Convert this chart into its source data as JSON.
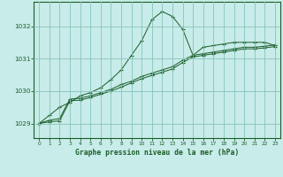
{
  "title": "Graphe pression niveau de la mer (hPa)",
  "bg_color": "#c8ece9",
  "grid_color": "#88c4bc",
  "line_color": "#1a5c28",
  "x_ticks": [
    0,
    1,
    2,
    3,
    4,
    5,
    6,
    7,
    8,
    9,
    10,
    11,
    12,
    13,
    14,
    15,
    16,
    17,
    18,
    19,
    20,
    21,
    22,
    23
  ],
  "y_ticks": [
    1029,
    1030,
    1031,
    1032
  ],
  "ylim": [
    1028.55,
    1032.75
  ],
  "xlim": [
    -0.5,
    23.5
  ],
  "series1": [
    1029.0,
    1029.25,
    1029.5,
    1029.65,
    1029.85,
    1029.95,
    1030.1,
    1030.35,
    1030.65,
    1031.1,
    1031.55,
    1032.2,
    1032.45,
    1032.3,
    1031.9,
    1031.1,
    1031.35,
    1031.4,
    1031.45,
    1031.5,
    1031.5,
    1031.5,
    1031.5,
    1031.4
  ],
  "series2": [
    1029.0,
    1029.1,
    1029.15,
    1029.75,
    1029.78,
    1029.85,
    1029.95,
    1030.05,
    1030.2,
    1030.3,
    1030.45,
    1030.55,
    1030.65,
    1030.75,
    1030.95,
    1031.1,
    1031.15,
    1031.2,
    1031.25,
    1031.3,
    1031.35,
    1031.35,
    1031.38,
    1031.42
  ],
  "series3": [
    1029.0,
    1029.05,
    1029.08,
    1029.7,
    1029.72,
    1029.8,
    1029.9,
    1030.0,
    1030.12,
    1030.25,
    1030.38,
    1030.48,
    1030.58,
    1030.68,
    1030.88,
    1031.05,
    1031.1,
    1031.15,
    1031.2,
    1031.25,
    1031.3,
    1031.3,
    1031.33,
    1031.37
  ]
}
